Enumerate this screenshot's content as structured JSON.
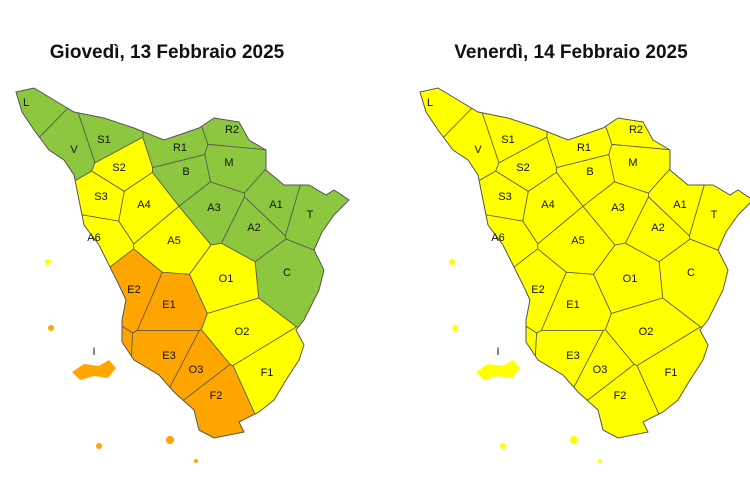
{
  "maps": [
    {
      "title": "Giovedì, 13 Febbraio 2025",
      "zones": [
        {
          "label": "L",
          "color": "#8dc63f"
        },
        {
          "label": "V",
          "color": "#8dc63f"
        },
        {
          "label": "S1",
          "color": "#8dc63f"
        },
        {
          "label": "R2",
          "color": "#8dc63f"
        },
        {
          "label": "R1",
          "color": "#8dc63f"
        },
        {
          "label": "M",
          "color": "#8dc63f"
        },
        {
          "label": "S2",
          "color": "#ffff00"
        },
        {
          "label": "B",
          "color": "#8dc63f"
        },
        {
          "label": "S3",
          "color": "#ffff00"
        },
        {
          "label": "A4",
          "color": "#ffff00"
        },
        {
          "label": "A3",
          "color": "#8dc63f"
        },
        {
          "label": "A1",
          "color": "#8dc63f"
        },
        {
          "label": "T",
          "color": "#8dc63f"
        },
        {
          "label": "A6",
          "color": "#ffff00"
        },
        {
          "label": "A2",
          "color": "#8dc63f"
        },
        {
          "label": "A5",
          "color": "#ffff00"
        },
        {
          "label": "C",
          "color": "#8dc63f"
        },
        {
          "label": "O1",
          "color": "#ffff00"
        },
        {
          "label": "E2",
          "color": "#ffa500"
        },
        {
          "label": "E1",
          "color": "#ffa500"
        },
        {
          "label": "O2",
          "color": "#ffff00"
        },
        {
          "label": "I",
          "color": "#ffa500"
        },
        {
          "label": "E3",
          "color": "#ffa500"
        },
        {
          "label": "O3",
          "color": "#ffa500"
        },
        {
          "label": "F1",
          "color": "#ffff00"
        },
        {
          "label": "F2",
          "color": "#ffa500"
        }
      ]
    },
    {
      "title": "Venerdì, 14 Febbraio 2025",
      "zones": [
        {
          "label": "L",
          "color": "#ffff00"
        },
        {
          "label": "V",
          "color": "#ffff00"
        },
        {
          "label": "S1",
          "color": "#ffff00"
        },
        {
          "label": "R2",
          "color": "#ffff00"
        },
        {
          "label": "R1",
          "color": "#ffff00"
        },
        {
          "label": "M",
          "color": "#ffff00"
        },
        {
          "label": "S2",
          "color": "#ffff00"
        },
        {
          "label": "B",
          "color": "#ffff00"
        },
        {
          "label": "S3",
          "color": "#ffff00"
        },
        {
          "label": "A4",
          "color": "#ffff00"
        },
        {
          "label": "A3",
          "color": "#ffff00"
        },
        {
          "label": "A1",
          "color": "#ffff00"
        },
        {
          "label": "T",
          "color": "#ffff00"
        },
        {
          "label": "A6",
          "color": "#ffff00"
        },
        {
          "label": "A2",
          "color": "#ffff00"
        },
        {
          "label": "A5",
          "color": "#ffff00"
        },
        {
          "label": "C",
          "color": "#ffff00"
        },
        {
          "label": "O1",
          "color": "#ffff00"
        },
        {
          "label": "E2",
          "color": "#ffff00"
        },
        {
          "label": "E1",
          "color": "#ffff00"
        },
        {
          "label": "O2",
          "color": "#ffff00"
        },
        {
          "label": "I",
          "color": "#ffff00"
        },
        {
          "label": "E3",
          "color": "#ffff00"
        },
        {
          "label": "O3",
          "color": "#ffff00"
        },
        {
          "label": "F1",
          "color": "#ffff00"
        },
        {
          "label": "F2",
          "color": "#ffff00"
        }
      ]
    }
  ]
}
